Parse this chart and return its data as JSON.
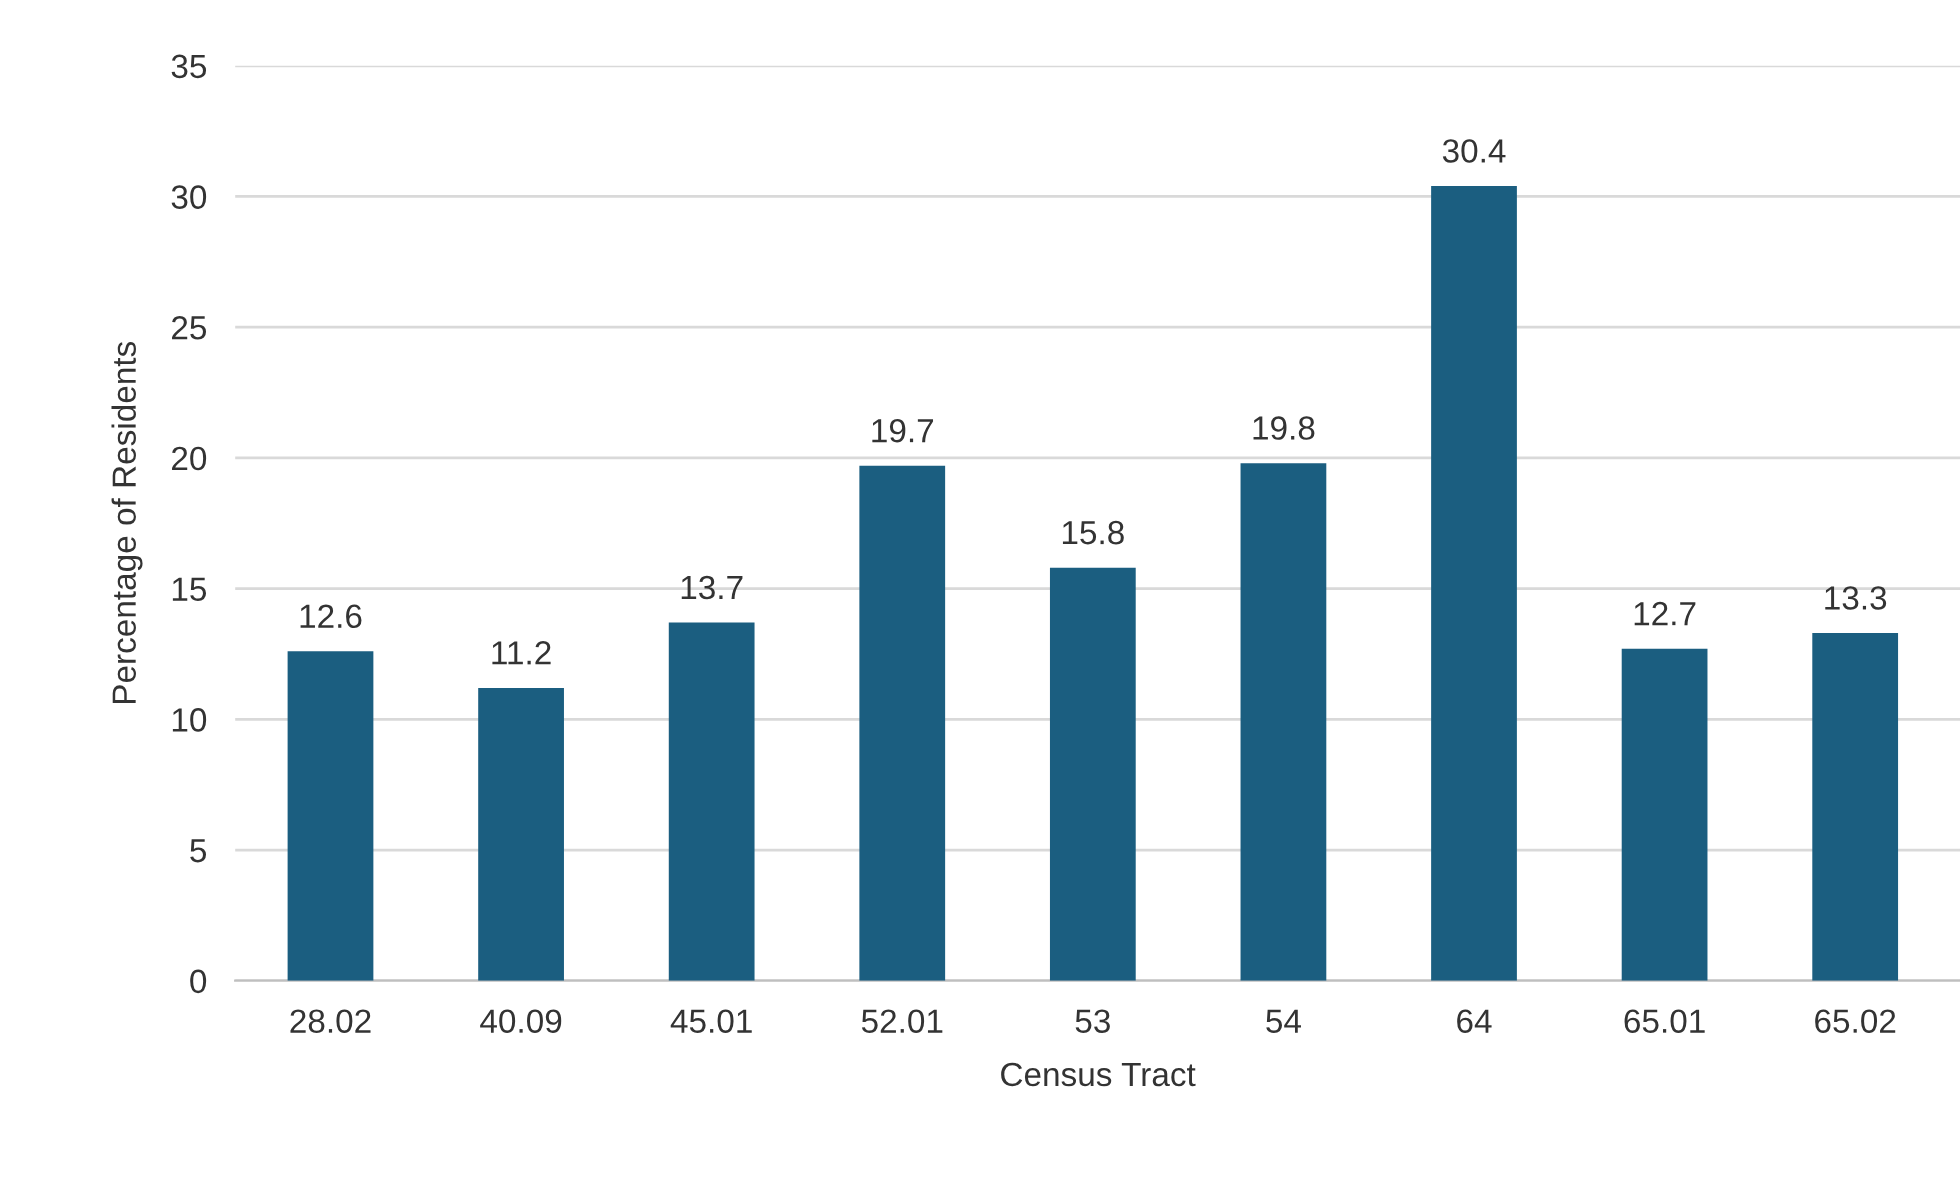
{
  "chart_data": {
    "type": "bar",
    "xlabel": "Census Tract",
    "ylabel": "Percentage of Residents",
    "categories": [
      "28.02",
      "40.09",
      "45.01",
      "52.01",
      "53",
      "54",
      "64",
      "65.01",
      "65.02"
    ],
    "values": [
      12.6,
      11.2,
      13.7,
      19.7,
      15.8,
      19.8,
      30.4,
      12.7,
      13.3
    ],
    "color": "#1b5e80",
    "ylim": [
      0,
      35
    ],
    "yticks": [
      0,
      5,
      10,
      15,
      20,
      25,
      30,
      35
    ],
    "grid": "y",
    "data_labels": true
  }
}
